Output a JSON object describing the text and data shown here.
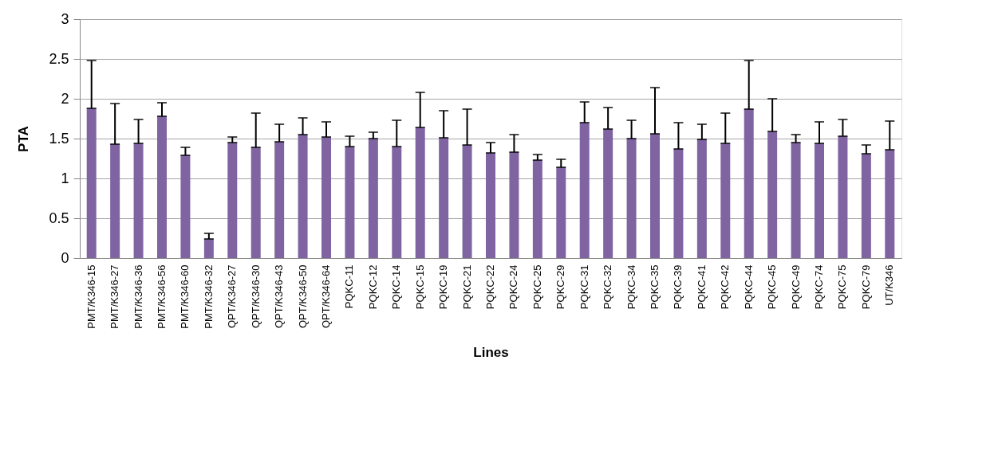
{
  "chart_data": {
    "type": "bar",
    "xlabel": "Lines",
    "ylabel": "PTA",
    "categories": [
      "PMT/K346-15",
      "PMT/K346-27",
      "PMT/K346-36",
      "PMT/K346-56",
      "PMT/K346-60",
      "PMT/K346-32",
      "QPT/K346-27",
      "QPT/K346-30",
      "QPT/K346-43",
      "QPT/K346-50",
      "QPT/K346-64",
      "PQKC-11",
      "PQKC-12",
      "PQKC-14",
      "PQKC-15",
      "PQKC-19",
      "PQKC-21",
      "PQKC-22",
      "PQKC-24",
      "PQKC-25",
      "PQKC-29",
      "PQKC-31",
      "PQKC-32",
      "PQKC-34",
      "PQKC-35",
      "PQKC-39",
      "PQKC-41",
      "PQKC-42",
      "PQKC-44",
      "PQKC-45",
      "PQKC-49",
      "PQKC-74",
      "PQKC-75",
      "PQKC-79",
      "UT/K346"
    ],
    "values": [
      1.88,
      1.43,
      1.44,
      1.78,
      1.29,
      0.24,
      1.45,
      1.39,
      1.46,
      1.55,
      1.52,
      1.4,
      1.5,
      1.4,
      1.64,
      1.51,
      1.42,
      1.32,
      1.33,
      1.23,
      1.14,
      1.7,
      1.62,
      1.5,
      1.56,
      1.37,
      1.49,
      1.44,
      1.87,
      1.59,
      1.45,
      1.44,
      1.53,
      1.31,
      1.36
    ],
    "errors": [
      [
        1.88,
        2.48
      ],
      [
        1.43,
        1.94
      ],
      [
        1.44,
        1.74
      ],
      [
        1.78,
        1.95
      ],
      [
        1.29,
        1.39
      ],
      [
        0.24,
        0.31
      ],
      [
        1.45,
        1.52
      ],
      [
        1.39,
        1.82
      ],
      [
        1.46,
        1.68
      ],
      [
        1.55,
        1.76
      ],
      [
        1.52,
        1.71
      ],
      [
        1.4,
        1.53
      ],
      [
        1.5,
        1.58
      ],
      [
        1.4,
        1.73
      ],
      [
        1.64,
        2.08
      ],
      [
        1.51,
        1.85
      ],
      [
        1.42,
        1.87
      ],
      [
        1.32,
        1.45
      ],
      [
        1.33,
        1.55
      ],
      [
        1.23,
        1.3
      ],
      [
        1.14,
        1.24
      ],
      [
        1.7,
        1.96
      ],
      [
        1.62,
        1.89
      ],
      [
        1.5,
        1.73
      ],
      [
        1.56,
        2.14
      ],
      [
        1.37,
        1.7
      ],
      [
        1.49,
        1.68
      ],
      [
        1.44,
        1.82
      ],
      [
        1.87,
        2.48
      ],
      [
        1.59,
        2.0
      ],
      [
        1.45,
        1.55
      ],
      [
        1.44,
        1.71
      ],
      [
        1.53,
        1.74
      ],
      [
        1.31,
        1.42
      ],
      [
        1.36,
        1.72
      ]
    ],
    "color": "#8064a2",
    "ylim": [
      0,
      3
    ],
    "yticks": [
      0,
      0.5,
      1,
      1.5,
      2,
      2.5,
      3
    ],
    "grid": "y"
  }
}
